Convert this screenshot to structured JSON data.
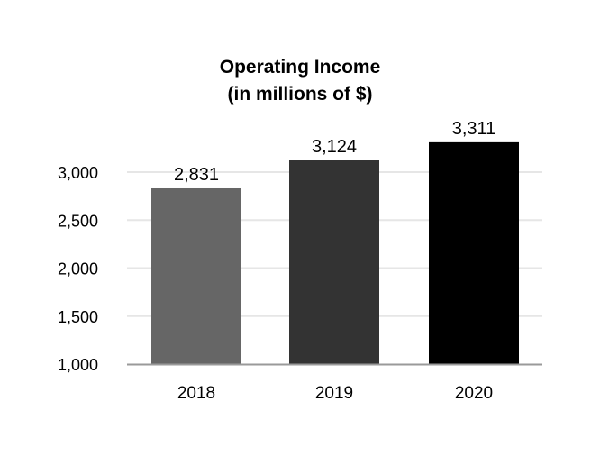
{
  "chart_data": {
    "type": "bar",
    "title": [
      "Operating Income",
      "(in millions of $)"
    ],
    "categories": [
      "2018",
      "2019",
      "2020"
    ],
    "values": [
      2831,
      3124,
      3311
    ],
    "value_labels": [
      "2,831",
      "3,124",
      "3,311"
    ],
    "bar_colors": [
      "#666666",
      "#333333",
      "#000000"
    ],
    "ylim": [
      1000,
      3000
    ],
    "yticks": [
      1000,
      1500,
      2000,
      2500,
      3000
    ],
    "ytick_labels": [
      "1,000",
      "1,500",
      "2,000",
      "2,500",
      "3,000"
    ],
    "xlabel": "",
    "ylabel": "",
    "grid": true,
    "legend": "none"
  }
}
